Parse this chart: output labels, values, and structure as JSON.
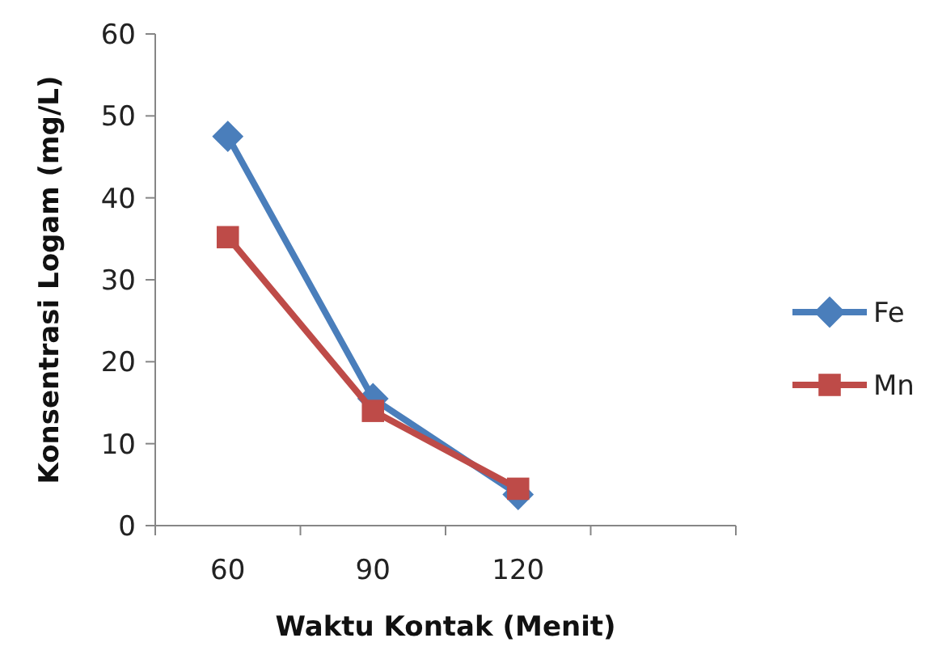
{
  "chart_data": {
    "type": "line",
    "xlabel": "Waktu Kontak (Menit)",
    "ylabel": "Konsentrasi Logam (mg/L)",
    "categories": [
      "60",
      "90",
      "120",
      null
    ],
    "series": [
      {
        "name": "Fe",
        "color": "#4a7ebb",
        "marker": "diamond",
        "values": [
          47.5,
          15.5,
          3.8,
          null
        ]
      },
      {
        "name": "Mn",
        "color": "#be4b48",
        "marker": "square",
        "values": [
          35.2,
          14,
          4.5,
          null
        ]
      }
    ],
    "ylim": [
      0,
      60
    ],
    "yticks": [
      0,
      10,
      20,
      30,
      40,
      50,
      60
    ],
    "grid": false,
    "legend": "right"
  }
}
